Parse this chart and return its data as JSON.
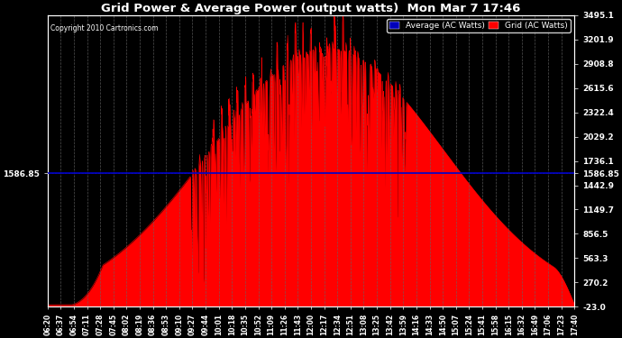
{
  "title": "Grid Power & Average Power (output watts)  Mon Mar 7 17:46",
  "copyright": "Copyright 2010 Cartronics.com",
  "legend_labels": [
    "Average (AC Watts)",
    "Grid (AC Watts)"
  ],
  "legend_colors": [
    "#0000bb",
    "#ff0000"
  ],
  "avg_line_value": 1586.85,
  "avg_line_label": "1586.85",
  "y_min": -23.0,
  "y_max": 3495.1,
  "yticks_right": [
    3495.1,
    3201.9,
    2908.8,
    2615.6,
    2322.4,
    2029.2,
    1736.1,
    1442.9,
    1149.7,
    856.5,
    563.3,
    270.2,
    -23.0
  ],
  "background_color": "#000000",
  "plot_bg_color": "#000000",
  "fill_color": "#ff0000",
  "line_color": "#ff0000",
  "avg_line_color": "#0000cc",
  "grid_color": "#666666",
  "text_color": "#ffffff",
  "xtick_labels": [
    "06:20",
    "06:37",
    "06:54",
    "07:11",
    "07:28",
    "07:45",
    "08:02",
    "08:19",
    "08:36",
    "08:53",
    "09:10",
    "09:27",
    "09:44",
    "10:01",
    "10:18",
    "10:35",
    "10:52",
    "11:09",
    "11:26",
    "11:43",
    "12:00",
    "12:17",
    "12:34",
    "12:51",
    "13:08",
    "13:25",
    "13:42",
    "13:59",
    "14:16",
    "14:33",
    "14:50",
    "15:07",
    "15:24",
    "15:41",
    "15:58",
    "16:15",
    "16:32",
    "16:49",
    "17:06",
    "17:23",
    "17:40"
  ]
}
